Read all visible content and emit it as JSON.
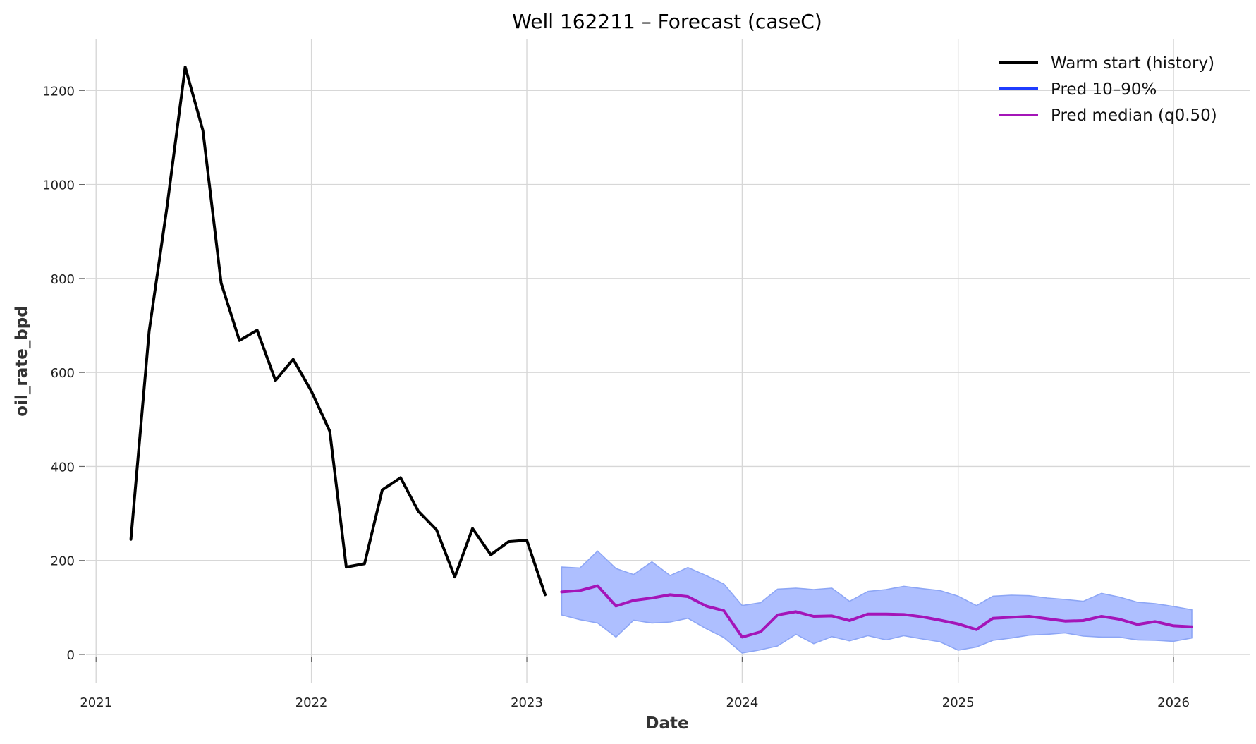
{
  "chart_data": {
    "type": "line",
    "title": "Well 162211 – Forecast (caseC)",
    "xlabel": "Date",
    "ylabel": "oil_rate_bpd",
    "xlim": [
      "2020-12-15",
      "2026-05-10"
    ],
    "ylim": [
      -60,
      1310
    ],
    "x_ticks": [
      "2021-01-01",
      "2022-01-01",
      "2023-01-01",
      "2024-01-01",
      "2025-01-01",
      "2026-01-01"
    ],
    "x_tick_labels": [
      "2021",
      "2022",
      "2023",
      "2024",
      "2025",
      "2026"
    ],
    "y_ticks": [
      0,
      200,
      400,
      600,
      800,
      1000,
      1200
    ],
    "y_tick_labels": [
      "0",
      "200",
      "400",
      "600",
      "800",
      "1000",
      "1200"
    ],
    "grid": true,
    "legend_position": "top-right",
    "legend": [
      {
        "label": "Warm start (history)",
        "color": "#000000"
      },
      {
        "label": "Pred 10–90%",
        "color": "#1f3cff"
      },
      {
        "label": "Pred median (q0.50)",
        "color": "#a415b8"
      }
    ],
    "history": {
      "name": "Warm start (history)",
      "color": "#000000",
      "x": [
        "2021-03-01",
        "2021-04-01",
        "2021-05-01",
        "2021-06-01",
        "2021-07-01",
        "2021-08-01",
        "2021-09-01",
        "2021-10-01",
        "2021-11-01",
        "2021-12-01",
        "2022-01-01",
        "2022-02-01",
        "2022-03-01",
        "2022-04-01",
        "2022-05-01",
        "2022-06-01",
        "2022-07-01",
        "2022-08-01",
        "2022-09-01",
        "2022-10-01",
        "2022-11-01",
        "2022-12-01",
        "2023-01-01",
        "2023-02-01"
      ],
      "y": [
        245,
        688,
        950,
        1250,
        1115,
        790,
        668,
        690,
        583,
        628,
        560,
        475,
        186,
        193,
        350,
        376,
        305,
        265,
        165,
        268,
        212,
        240,
        243,
        127
      ]
    },
    "band": {
      "name": "Pred 10–90%",
      "fill": "#aebfff",
      "edge": "#8da6f5",
      "x": [
        "2023-03-01",
        "2023-04-01",
        "2023-05-01",
        "2023-06-01",
        "2023-07-01",
        "2023-08-01",
        "2023-09-01",
        "2023-10-01",
        "2023-11-01",
        "2023-12-01",
        "2024-01-01",
        "2024-02-01",
        "2024-03-01",
        "2024-04-01",
        "2024-05-01",
        "2024-06-01",
        "2024-07-01",
        "2024-08-01",
        "2024-09-01",
        "2024-10-01",
        "2024-11-01",
        "2024-12-01",
        "2025-01-01",
        "2025-02-01",
        "2025-03-01",
        "2025-04-01",
        "2025-05-01",
        "2025-06-01",
        "2025-07-01",
        "2025-08-01",
        "2025-09-01",
        "2025-10-01",
        "2025-11-01",
        "2025-12-01",
        "2026-01-01",
        "2026-02-01"
      ],
      "upper": [
        186,
        184,
        220,
        183,
        170,
        197,
        168,
        185,
        168,
        150,
        104,
        110,
        139,
        141,
        138,
        141,
        113,
        134,
        138,
        145,
        140,
        136,
        124,
        104,
        124,
        126,
        125,
        120,
        117,
        113,
        130,
        122,
        111,
        108,
        102,
        95
      ],
      "lower": [
        84,
        74,
        67,
        37,
        73,
        67,
        69,
        77,
        55,
        36,
        3,
        10,
        18,
        43,
        23,
        38,
        29,
        40,
        31,
        40,
        33,
        27,
        9,
        16,
        30,
        35,
        41,
        43,
        46,
        39,
        37,
        37,
        31,
        30,
        28,
        35
      ]
    },
    "median": {
      "name": "Pred median (q0.50)",
      "color": "#a415b8",
      "x": [
        "2023-03-01",
        "2023-04-01",
        "2023-05-01",
        "2023-06-01",
        "2023-07-01",
        "2023-08-01",
        "2023-09-01",
        "2023-10-01",
        "2023-11-01",
        "2023-12-01",
        "2024-01-01",
        "2024-02-01",
        "2024-03-01",
        "2024-04-01",
        "2024-05-01",
        "2024-06-01",
        "2024-07-01",
        "2024-08-01",
        "2024-09-01",
        "2024-10-01",
        "2024-11-01",
        "2024-12-01",
        "2025-01-01",
        "2025-02-01",
        "2025-03-01",
        "2025-04-01",
        "2025-05-01",
        "2025-06-01",
        "2025-07-01",
        "2025-08-01",
        "2025-09-01",
        "2025-10-01",
        "2025-11-01",
        "2025-12-01",
        "2026-01-01",
        "2026-02-01"
      ],
      "y": [
        133,
        136,
        146,
        103,
        115,
        120,
        127,
        123,
        103,
        93,
        37,
        48,
        84,
        91,
        81,
        82,
        72,
        86,
        86,
        85,
        80,
        73,
        65,
        53,
        77,
        79,
        81,
        76,
        71,
        72,
        81,
        75,
        64,
        70,
        61,
        59
      ]
    }
  }
}
